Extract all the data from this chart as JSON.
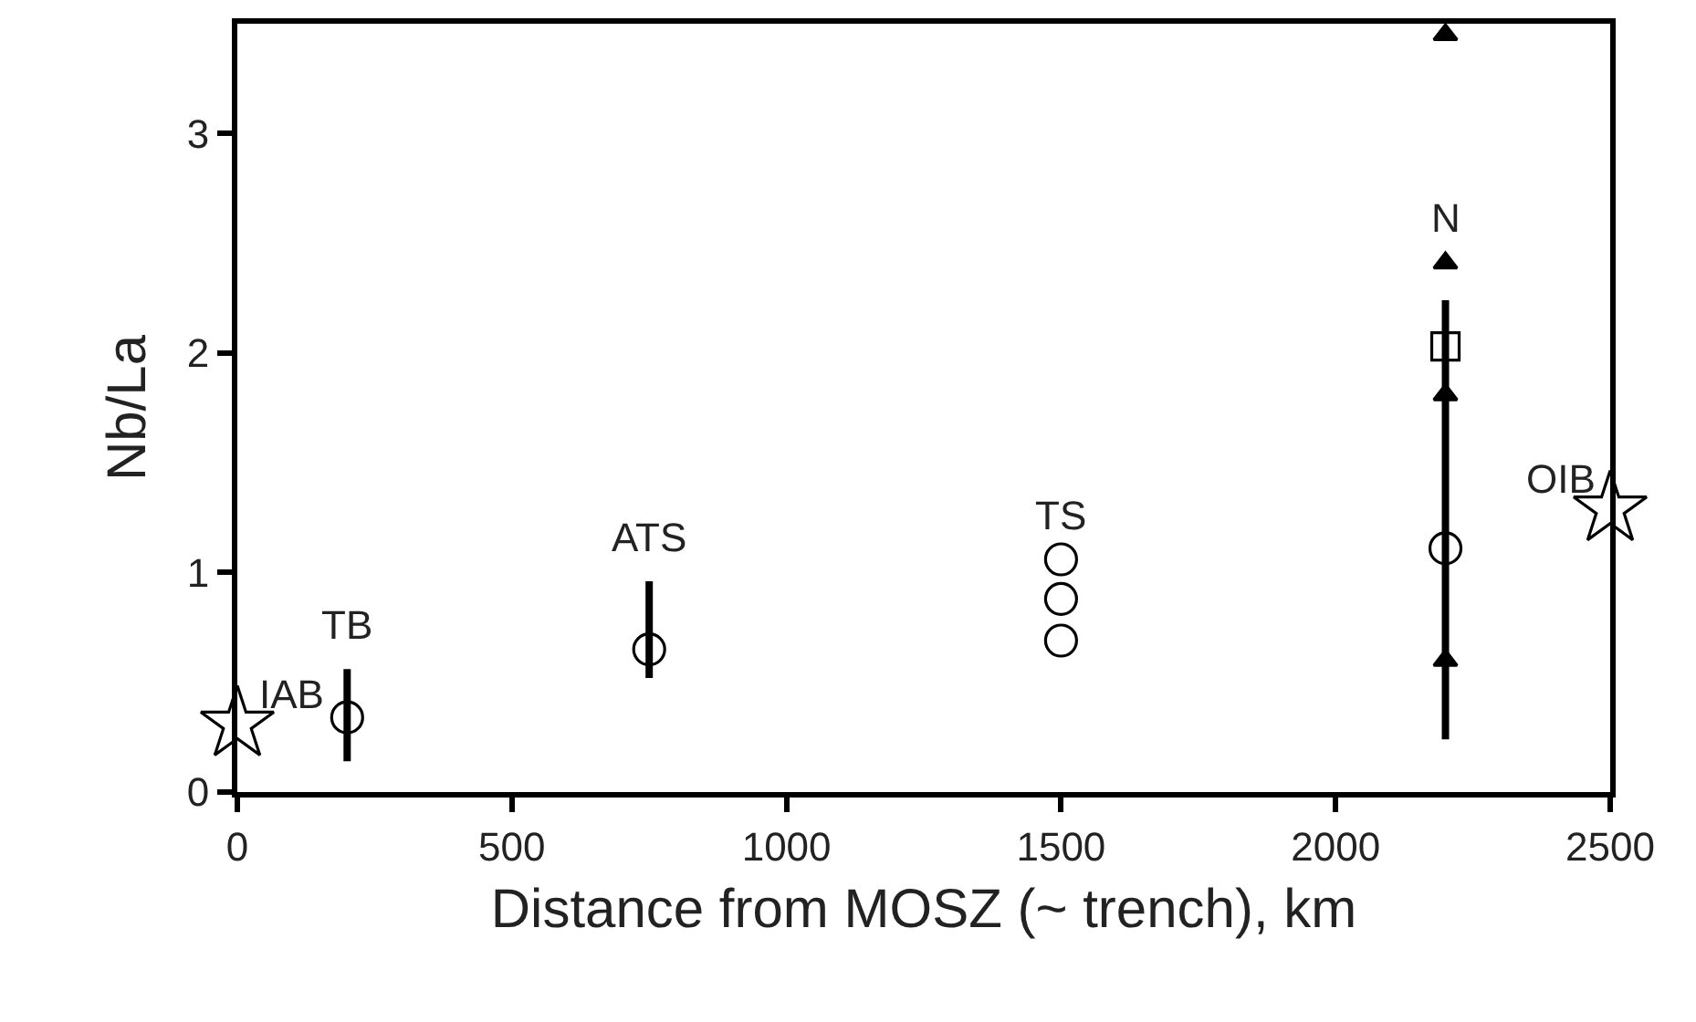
{
  "chart_data": {
    "type": "scatter",
    "xlabel": "Distance from MOSZ (~ trench), km",
    "ylabel": "Nb/La",
    "xlim": [
      0,
      2500
    ],
    "xticks": [
      0,
      500,
      1000,
      1500,
      2000,
      2500
    ],
    "ylim": [
      0,
      3.5
    ],
    "yticks": [
      0,
      1,
      2,
      3
    ],
    "grid": false,
    "series": [
      {
        "marker": "star",
        "color": "#000000",
        "x": [
          0,
          2500
        ],
        "values": [
          0.31,
          1.29
        ]
      },
      {
        "marker": "circle",
        "color": "#000000",
        "x": [
          200,
          750,
          1500,
          1500,
          1500,
          2200
        ],
        "values": [
          0.34,
          0.65,
          1.06,
          0.88,
          0.69,
          1.11
        ],
        "errors": [
          [
            0.14,
            0.56
          ],
          [
            0.52,
            0.96
          ],
          null,
          null,
          null,
          [
            0.24,
            2.24
          ]
        ]
      },
      {
        "marker": "square",
        "color": "#000000",
        "x": [
          2200
        ],
        "values": [
          2.03
        ]
      },
      {
        "marker": "triangle",
        "color": "#000000",
        "x": [
          2200,
          2200,
          2200,
          2200
        ],
        "values": [
          3.45,
          2.41,
          1.81,
          0.6
        ]
      }
    ],
    "annotations": [
      {
        "text": "IAB",
        "x": 0,
        "y": 0.31
      },
      {
        "text": "TB",
        "x": 200,
        "y": 0.56
      },
      {
        "text": "ATS",
        "x": 750,
        "y": 0.96
      },
      {
        "text": "TS",
        "x": 1500,
        "y": 1.06
      },
      {
        "text": "N",
        "x": 2200,
        "y": 2.41
      },
      {
        "text": "OIB",
        "x": 2500,
        "y": 1.29
      }
    ]
  }
}
